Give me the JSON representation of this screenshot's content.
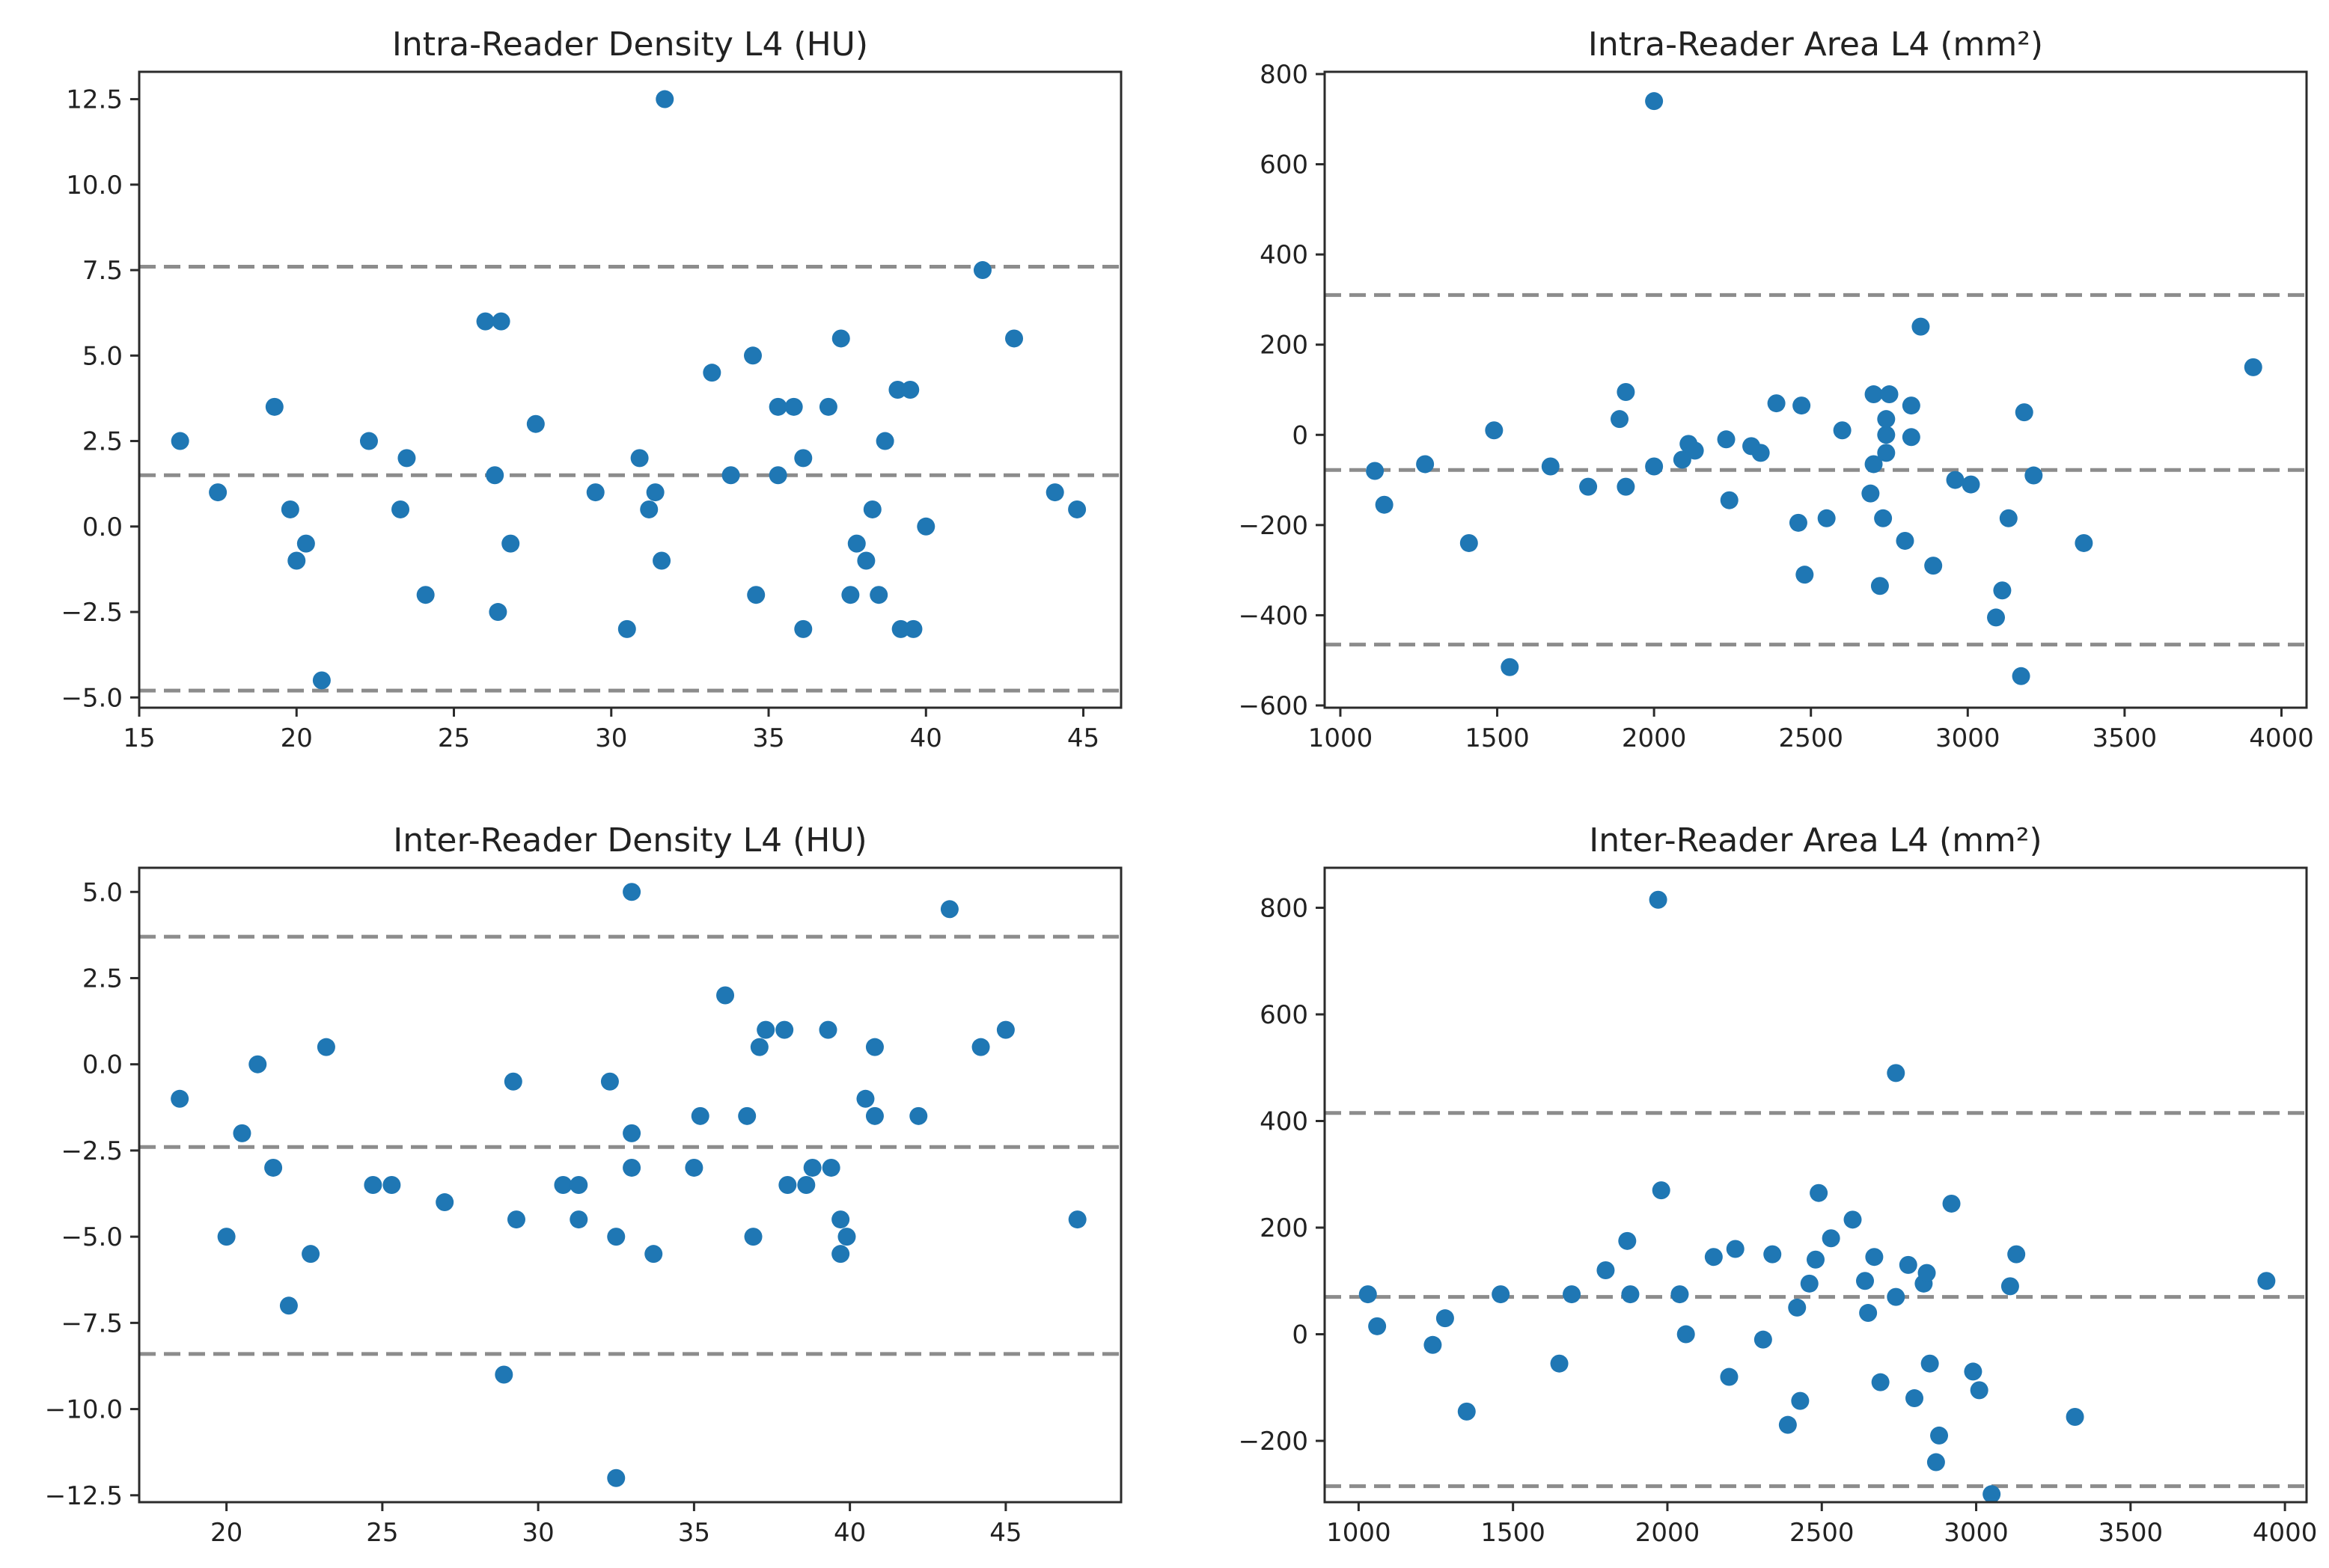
{
  "chart_data": [
    {
      "type": "scatter",
      "title": "Intra-Reader Density L4 (HU)",
      "xlim": [
        15,
        46.2
      ],
      "ylim": [
        -5.3,
        13.3
      ],
      "xticks": [
        15,
        20,
        25,
        30,
        35,
        40,
        45
      ],
      "yticks": [
        -5.0,
        -2.5,
        0.0,
        2.5,
        5.0,
        7.5,
        10.0,
        12.5
      ],
      "yfmt": 1,
      "hlines": [
        7.6,
        1.5,
        -4.8
      ],
      "x": [
        16.3,
        17.5,
        19.3,
        19.8,
        20.0,
        20.3,
        20.8,
        22.3,
        23.3,
        23.5,
        24.1,
        26.0,
        26.3,
        26.4,
        26.5,
        26.8,
        27.6,
        29.5,
        30.5,
        30.9,
        31.2,
        31.4,
        31.6,
        31.7,
        33.2,
        33.8,
        34.5,
        34.6,
        35.3,
        35.3,
        35.8,
        36.1,
        36.1,
        36.9,
        37.3,
        37.6,
        37.8,
        38.1,
        38.3,
        38.5,
        38.7,
        39.1,
        39.2,
        39.5,
        39.6,
        40.0,
        41.8,
        42.8,
        44.1,
        44.8
      ],
      "y": [
        2.5,
        1.0,
        3.5,
        0.5,
        -1.0,
        -0.5,
        -4.5,
        2.5,
        0.5,
        2.0,
        -2.0,
        6.0,
        1.5,
        -2.5,
        6.0,
        -0.5,
        3.0,
        1.0,
        -3.0,
        2.0,
        0.5,
        1.0,
        -1.0,
        12.5,
        4.5,
        1.5,
        5.0,
        -2.0,
        1.5,
        3.5,
        3.5,
        2.0,
        -3.0,
        3.5,
        5.5,
        -2.0,
        -0.5,
        -1.0,
        0.5,
        -2.0,
        2.5,
        4.0,
        -3.0,
        4.0,
        -3.0,
        0.0,
        7.5,
        5.5,
        1.0,
        0.5
      ]
    },
    {
      "type": "scatter",
      "title": "Intra-Reader Area L4 (mm²)",
      "xlim": [
        950,
        4080
      ],
      "ylim": [
        -605,
        805
      ],
      "xticks": [
        1000,
        1500,
        2000,
        2500,
        3000,
        3500,
        4000
      ],
      "yticks": [
        -600,
        -400,
        -200,
        0,
        200,
        400,
        600,
        800
      ],
      "yfmt": 0,
      "hlines": [
        310,
        -78,
        -465
      ],
      "x": [
        1110,
        1140,
        1270,
        1410,
        1490,
        1540,
        1670,
        1790,
        1890,
        1910,
        1910,
        2000,
        2000,
        2090,
        2110,
        2130,
        2230,
        2240,
        2310,
        2340,
        2390,
        2460,
        2470,
        2480,
        2550,
        2600,
        2690,
        2700,
        2700,
        2720,
        2730,
        2740,
        2740,
        2740,
        2750,
        2800,
        2820,
        2820,
        2850,
        2890,
        2960,
        3010,
        3090,
        3110,
        3130,
        3170,
        3180,
        3210,
        3370,
        3910
      ],
      "y": [
        -80,
        -155,
        -65,
        -240,
        10,
        -515,
        -70,
        -115,
        35,
        -115,
        95,
        740,
        -70,
        -55,
        -20,
        -35,
        -10,
        -145,
        -25,
        -40,
        70,
        -195,
        65,
        -310,
        -185,
        10,
        -130,
        90,
        -65,
        -335,
        -185,
        -40,
        0,
        35,
        90,
        -235,
        -5,
        65,
        240,
        -290,
        -100,
        -110,
        -405,
        -345,
        -185,
        -535,
        50,
        -90,
        -240,
        150
      ]
    },
    {
      "type": "scatter",
      "title": "Inter-Reader Density L4 (HU)",
      "xlim": [
        17.2,
        48.7
      ],
      "ylim": [
        -12.7,
        5.7
      ],
      "xticks": [
        20,
        25,
        30,
        35,
        40,
        45
      ],
      "yticks": [
        -12.5,
        -10.0,
        -7.5,
        -5.0,
        -2.5,
        0.0,
        2.5,
        5.0
      ],
      "yfmt": 1,
      "hlines": [
        3.7,
        -2.4,
        -8.4
      ],
      "x": [
        18.5,
        20.0,
        20.5,
        21.0,
        21.5,
        22.0,
        22.7,
        23.2,
        24.7,
        25.3,
        27.0,
        28.9,
        29.2,
        29.3,
        30.8,
        31.3,
        31.3,
        32.3,
        32.5,
        32.5,
        33.0,
        33.0,
        33.0,
        33.7,
        35.0,
        35.2,
        36.0,
        36.7,
        36.9,
        37.1,
        37.3,
        37.9,
        38.0,
        38.6,
        38.8,
        39.3,
        39.4,
        39.7,
        39.7,
        39.9,
        40.5,
        40.8,
        40.8,
        42.2,
        43.2,
        44.2,
        45.0,
        47.3
      ],
      "y": [
        -1.0,
        -5.0,
        -2.0,
        0.0,
        -3.0,
        -7.0,
        -5.5,
        0.5,
        -3.5,
        -3.5,
        -4.0,
        -9.0,
        -0.5,
        -4.5,
        -3.5,
        -3.5,
        -4.5,
        -0.5,
        -5.0,
        -12.0,
        -2.0,
        -3.0,
        5.0,
        -5.5,
        -3.0,
        -1.5,
        2.0,
        -1.5,
        -5.0,
        0.5,
        1.0,
        1.0,
        -3.5,
        -3.5,
        -3.0,
        1.0,
        -3.0,
        -4.5,
        -5.5,
        -5.0,
        -1.0,
        -1.5,
        0.5,
        -1.5,
        4.5,
        0.5,
        1.0,
        -4.5
      ]
    },
    {
      "type": "scatter",
      "title": "Inter-Reader Area L4 (mm²)",
      "xlim": [
        890,
        4070
      ],
      "ylim": [
        -315,
        875
      ],
      "xticks": [
        1000,
        1500,
        2000,
        2500,
        3000,
        3500,
        4000
      ],
      "yticks": [
        -200,
        0,
        200,
        400,
        600,
        800
      ],
      "yfmt": 0,
      "hlines": [
        415,
        70,
        -285
      ],
      "x": [
        1030,
        1060,
        1240,
        1280,
        1350,
        1460,
        1650,
        1690,
        1800,
        1870,
        1880,
        1970,
        1980,
        2040,
        2060,
        2150,
        2200,
        2220,
        2310,
        2340,
        2390,
        2420,
        2430,
        2460,
        2480,
        2490,
        2530,
        2600,
        2640,
        2650,
        2670,
        2690,
        2740,
        2740,
        2780,
        2800,
        2830,
        2840,
        2850,
        2870,
        2880,
        2920,
        2990,
        3010,
        3050,
        3110,
        3130,
        3320,
        3940
      ],
      "y": [
        75,
        15,
        -20,
        30,
        -145,
        75,
        -55,
        75,
        120,
        175,
        75,
        815,
        270,
        75,
        0,
        145,
        -80,
        160,
        -10,
        150,
        -170,
        50,
        -125,
        95,
        140,
        265,
        180,
        215,
        100,
        40,
        145,
        -90,
        70,
        490,
        130,
        -120,
        95,
        115,
        -55,
        -240,
        -190,
        245,
        -70,
        -105,
        -300,
        90,
        150,
        -155,
        100
      ]
    }
  ]
}
